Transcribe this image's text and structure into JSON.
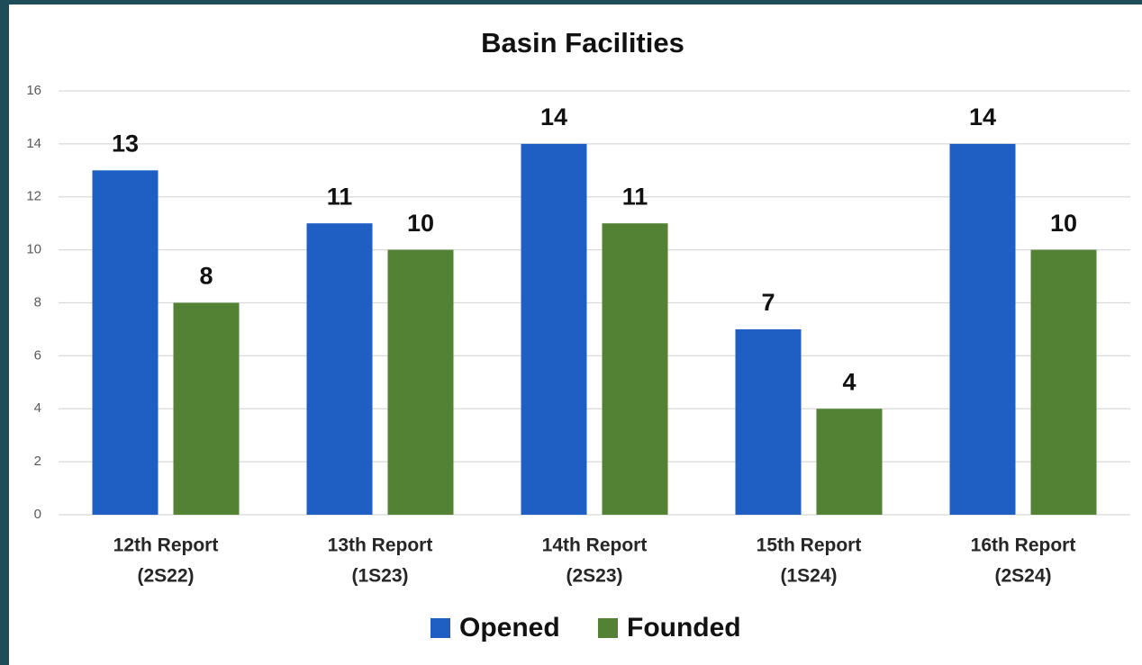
{
  "chart_data": {
    "type": "bar",
    "title": "Basin Facilities",
    "categories": [
      [
        "12th Report",
        "(2S22)"
      ],
      [
        "13th Report",
        "(1S23)"
      ],
      [
        "14th Report",
        "(2S23)"
      ],
      [
        "15th Report",
        "(1S24)"
      ],
      [
        "16th Report",
        "(2S24)"
      ]
    ],
    "series": [
      {
        "name": "Opened",
        "color": "#1f5fc4",
        "values": [
          13,
          11,
          14,
          7,
          14
        ]
      },
      {
        "name": "Founded",
        "color": "#548235",
        "values": [
          8,
          10,
          11,
          4,
          10
        ]
      }
    ],
    "ylim": [
      0,
      16
    ],
    "yticks": [
      0,
      2,
      4,
      6,
      8,
      10,
      12,
      14,
      16
    ],
    "grid": true,
    "legend": "bottom"
  }
}
